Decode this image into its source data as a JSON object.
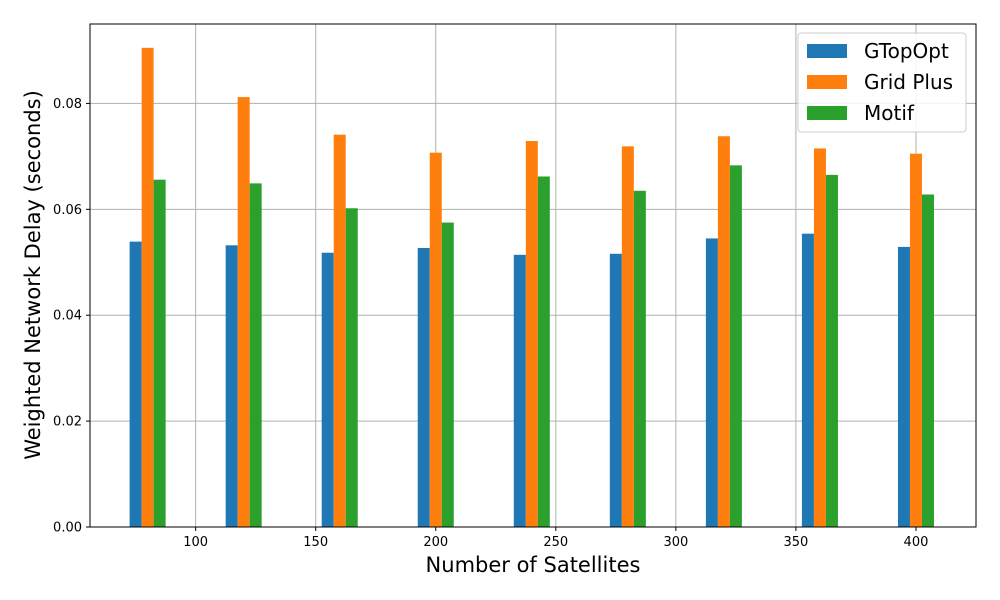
{
  "chart_data": {
    "type": "bar",
    "title": "",
    "xlabel": "Number of Satellites",
    "ylabel": "Weighted Network Delay (seconds)",
    "x": [
      80,
      120,
      160,
      200,
      240,
      280,
      320,
      360,
      400
    ],
    "xlim": [
      56,
      425
    ],
    "ylim": [
      0,
      0.095
    ],
    "xticks": [
      100,
      150,
      200,
      250,
      300,
      350,
      400
    ],
    "xtick_labels": [
      "100",
      "150",
      "200",
      "250",
      "300",
      "350",
      "400"
    ],
    "yticks": [
      0,
      0.02,
      0.04,
      0.06,
      0.08
    ],
    "ytick_labels": [
      "0.00",
      "0.02",
      "0.04",
      "0.06",
      "0.08"
    ],
    "grid": true,
    "legend_position": "top-right",
    "series": [
      {
        "name": "GTopOpt",
        "color": "#1f77b4",
        "values": [
          0.0539,
          0.0532,
          0.0518,
          0.0527,
          0.0514,
          0.0516,
          0.0545,
          0.0554,
          0.0529
        ]
      },
      {
        "name": "Grid Plus",
        "color": "#ff7f0e",
        "values": [
          0.0905,
          0.0812,
          0.0741,
          0.0707,
          0.0729,
          0.0719,
          0.0738,
          0.0715,
          0.0705
        ]
      },
      {
        "name": "Motif",
        "color": "#2ca02c",
        "values": [
          0.0656,
          0.0649,
          0.0602,
          0.0575,
          0.0662,
          0.0635,
          0.0683,
          0.0665,
          0.0628
        ]
      }
    ]
  }
}
